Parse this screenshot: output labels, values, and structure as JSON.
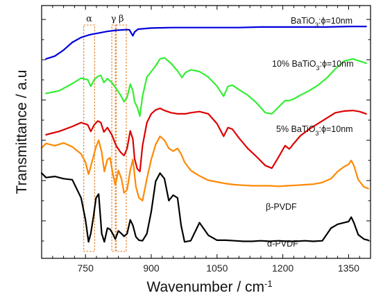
{
  "chart_data": {
    "type": "line",
    "title": "",
    "xlabel": "Wavenumber / cm",
    "xlabel_sup": "-1",
    "ylabel": "Transmittance / a.u",
    "xlim": [
      650,
      1400
    ],
    "x_ticks": [
      750,
      900,
      1050,
      1200,
      1350
    ],
    "x_tick_labels": [
      "750",
      "900",
      "1050",
      "1200",
      "1350"
    ],
    "y_ticks_visible": false,
    "grid": false,
    "band_regions": [
      {
        "label": "α",
        "x_range": [
          746,
          771
        ]
      },
      {
        "label": "γ",
        "x_range": [
          810,
          818
        ]
      },
      {
        "label": "β",
        "x_range": [
          820,
          843
        ]
      }
    ],
    "series": [
      {
        "name": "BaTiO3:ϕ=10nm",
        "label_parts": [
          "BaTiO",
          "3",
          ":ϕ=10nm"
        ],
        "color": "#0000dd",
        "x": [
          660,
          680,
          700,
          720,
          740,
          760,
          780,
          800,
          820,
          840,
          850,
          855,
          858,
          862,
          870,
          900,
          950,
          1000,
          1050,
          1100,
          1150,
          1200,
          1250,
          1300,
          1350,
          1390
        ],
        "y": [
          22.8,
          23.3,
          24.4,
          25.8,
          26.7,
          27.2,
          27.5,
          27.8,
          28.0,
          28.1,
          28.1,
          27.4,
          27.0,
          27.7,
          28.2,
          28.4,
          28.5,
          28.5,
          28.5,
          28.5,
          28.6,
          28.6,
          28.6,
          28.6,
          28.7,
          28.7
        ]
      },
      {
        "name": "10% BaTiO3:ϕ=10nm",
        "label_parts": [
          "10% BaTiO",
          "3",
          ":ϕ=10nm"
        ],
        "color": "#33ee33",
        "x": [
          660,
          690,
          720,
          740,
          755,
          762,
          770,
          778,
          785,
          792,
          800,
          810,
          820,
          830,
          838,
          845,
          852,
          858,
          862,
          868,
          874,
          880,
          890,
          900,
          910,
          920,
          930,
          945,
          960,
          970,
          978,
          990,
          1010,
          1030,
          1050,
          1065,
          1075,
          1085,
          1100,
          1120,
          1140,
          1160,
          1175,
          1190,
          1205,
          1215,
          1225,
          1240,
          1260,
          1280,
          1300,
          1320,
          1340,
          1360,
          1375,
          1390
        ],
        "y": [
          16.5,
          17.0,
          18.3,
          19.3,
          19.0,
          17.8,
          19.0,
          19.6,
          19.8,
          18.5,
          19.2,
          18.5,
          17.4,
          16.2,
          15.0,
          15.8,
          18.2,
          17.0,
          15.0,
          14.0,
          12.4,
          16.0,
          19.5,
          20.5,
          21.5,
          22.8,
          23.0,
          22.0,
          20.6,
          19.4,
          20.3,
          20.8,
          20.5,
          19.5,
          17.8,
          16.0,
          17.8,
          18.0,
          17.2,
          16.2,
          14.8,
          13.0,
          12.8,
          14.0,
          15.2,
          15.2,
          15.5,
          16.2,
          17.0,
          18.0,
          19.3,
          21.0,
          22.4,
          22.8,
          22.4,
          22.0
        ]
      },
      {
        "name": "5% BaTiO3:ϕ=10nm",
        "label_parts": [
          "5% BaTiO",
          "3",
          ":ϕ=10nm"
        ],
        "color": "#dd0000",
        "x": [
          660,
          690,
          720,
          740,
          755,
          762,
          770,
          778,
          785,
          792,
          800,
          810,
          820,
          830,
          838,
          845,
          852,
          858,
          862,
          868,
          874,
          880,
          890,
          900,
          910,
          920,
          930,
          945,
          960,
          970,
          978,
          990,
          1010,
          1030,
          1050,
          1065,
          1075,
          1085,
          1100,
          1120,
          1140,
          1160,
          1175,
          1190,
          1205,
          1215,
          1225,
          1240,
          1260,
          1280,
          1300,
          1320,
          1340,
          1360,
          1375,
          1390
        ],
        "y": [
          9.0,
          9.6,
          10.5,
          11.2,
          10.8,
          9.6,
          10.8,
          11.5,
          11.2,
          9.5,
          10.3,
          9.0,
          7.0,
          5.8,
          5.2,
          6.5,
          9.7,
          8.2,
          4.6,
          2.8,
          2.3,
          7.0,
          11.2,
          12.8,
          13.5,
          13.8,
          13.4,
          13.0,
          12.8,
          12.8,
          12.8,
          13.0,
          13.2,
          12.8,
          11.0,
          8.7,
          10.3,
          10.0,
          8.4,
          6.5,
          5.0,
          3.4,
          2.9,
          4.9,
          7.0,
          6.4,
          7.4,
          8.8,
          10.0,
          11.0,
          12.0,
          13.0,
          13.3,
          13.4,
          13.2,
          12.8
        ]
      },
      {
        "name": "β-PVDF",
        "label_parts": [
          "β-PVDF"
        ],
        "color": "#ff8800",
        "x": [
          650,
          660,
          680,
          700,
          720,
          740,
          750,
          757,
          762,
          768,
          774,
          780,
          787,
          793,
          800,
          806,
          812,
          818,
          825,
          832,
          838,
          845,
          852,
          858,
          865,
          872,
          880,
          890,
          900,
          910,
          920,
          930,
          940,
          950,
          960,
          968,
          976,
          990,
          1010,
          1030,
          1050,
          1070,
          1090,
          1110,
          1130,
          1150,
          1170,
          1190,
          1210,
          1230,
          1250,
          1270,
          1290,
          1310,
          1325,
          1340,
          1350,
          1356,
          1362,
          1372,
          1385,
          1395
        ],
        "y": [
          6.6,
          7.4,
          7.0,
          7.5,
          6.8,
          5.5,
          4.0,
          1.8,
          3.2,
          5.0,
          6.8,
          8.0,
          5.8,
          2.3,
          4.5,
          4.8,
          2.0,
          -0.2,
          2.5,
          1.0,
          -1.6,
          -1.0,
          2.5,
          4.5,
          -0.5,
          -2.5,
          -3.0,
          1.0,
          4.5,
          7.2,
          8.7,
          8.0,
          6.5,
          6.0,
          6.5,
          5.5,
          4.0,
          2.5,
          1.5,
          0.7,
          0.4,
          0.1,
          -0.1,
          -0.2,
          -0.3,
          -0.3,
          -0.3,
          -0.4,
          -0.3,
          -0.2,
          -0.1,
          0.0,
          0.3,
          1.0,
          2.3,
          3.2,
          3.6,
          4.3,
          3.4,
          0.8,
          -0.5,
          -0.8
        ]
      },
      {
        "name": "α-PVDF",
        "label_parts": [
          "α-PVDF"
        ],
        "color": "#000000",
        "x": [
          650,
          660,
          680,
          700,
          720,
          740,
          750,
          757,
          762,
          768,
          774,
          780,
          787,
          793,
          800,
          806,
          812,
          818,
          825,
          832,
          838,
          845,
          852,
          858,
          865,
          872,
          880,
          890,
          900,
          910,
          920,
          930,
          940,
          950,
          960,
          968,
          976,
          990,
          1010,
          1030,
          1050,
          1070,
          1090,
          1110,
          1130,
          1150,
          1170,
          1190,
          1210,
          1230,
          1250,
          1270,
          1290,
          1310,
          1325,
          1340,
          1350,
          1356,
          1362,
          1372,
          1385,
          1395
        ],
        "y": [
          2.0,
          1.2,
          1.4,
          1.0,
          0.8,
          -2.5,
          -6.5,
          -10.5,
          -9.0,
          -6.0,
          -2.5,
          -1.8,
          -9.0,
          -10.5,
          -8.0,
          -8.2,
          -9.0,
          -10.0,
          -8.5,
          -9.0,
          -9.5,
          -9.0,
          -6.5,
          -7.5,
          -9.6,
          -10.2,
          -10.3,
          -9.0,
          -5.0,
          0.5,
          2.0,
          1.0,
          -3.0,
          -2.0,
          -2.5,
          -7.5,
          -10.5,
          -10.3,
          -7.0,
          -9.3,
          -10.2,
          -10.2,
          -10.3,
          -10.4,
          -10.4,
          -10.3,
          -10.4,
          -10.3,
          -10.4,
          -10.4,
          -10.3,
          -10.4,
          -10.3,
          -8.0,
          -7.3,
          -7.0,
          -6.8,
          -6.0,
          -7.0,
          -9.2,
          -10.0,
          -10.2
        ]
      }
    ]
  }
}
